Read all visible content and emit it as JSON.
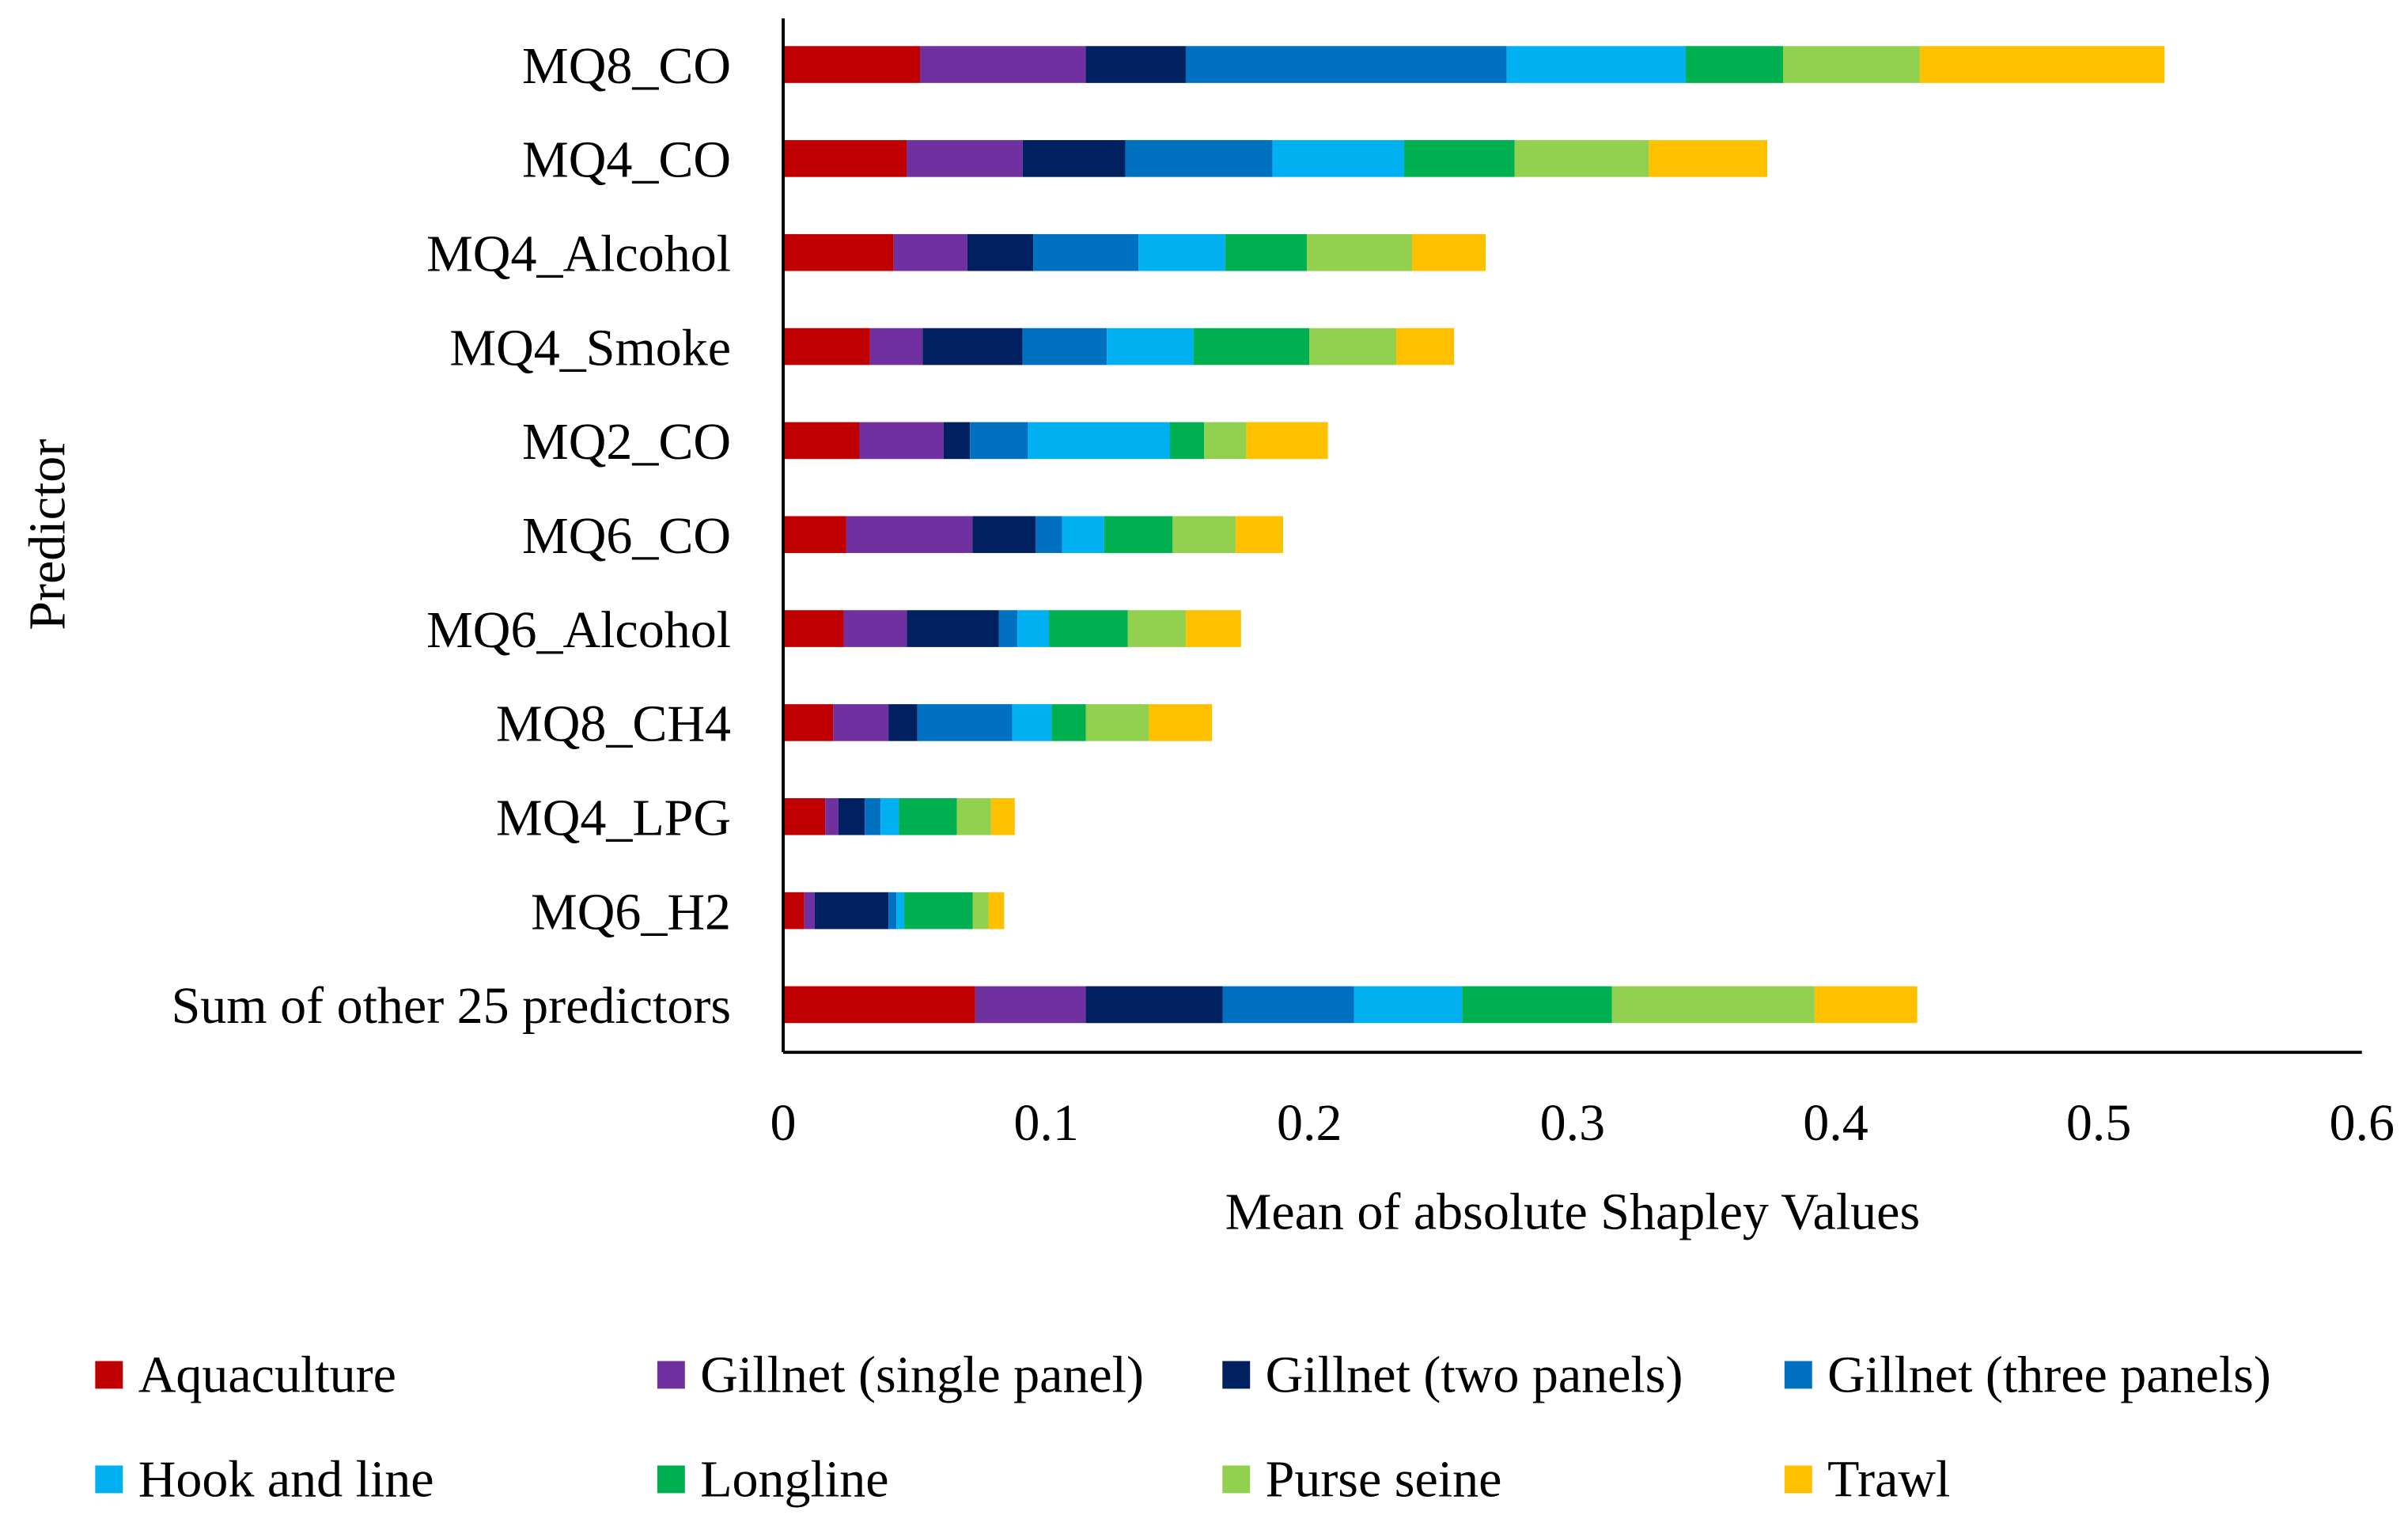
{
  "chart_data": {
    "type": "bar",
    "orientation": "horizontal",
    "stacked": true,
    "title": "",
    "xlabel": "Mean of absolute Shapley Values",
    "ylabel": "Predictor",
    "xlim": [
      0,
      0.6
    ],
    "xticks": [
      "0",
      "0.1",
      "0.2",
      "0.3",
      "0.4",
      "0.5",
      "0.6"
    ],
    "grid": false,
    "legend_position": "bottom",
    "categories": [
      "MQ8_CO",
      "MQ4_CO",
      "MQ4_Alcohol",
      "MQ4_Smoke",
      "MQ2_CO",
      "MQ6_CO",
      "MQ6_Alcohol",
      "MQ8_CH4",
      "MQ4_LPG",
      "MQ6_H2",
      "Sum of other 25 predictors"
    ],
    "series": [
      {
        "name": "Aquaculture",
        "color": "#C00000",
        "values": [
          0.052,
          0.047,
          0.042,
          0.033,
          0.029,
          0.024,
          0.023,
          0.019,
          0.016,
          0.008,
          0.073
        ]
      },
      {
        "name": "Gillnet (single panel)",
        "color": "#7030A0",
        "values": [
          0.063,
          0.044,
          0.028,
          0.02,
          0.032,
          0.048,
          0.024,
          0.021,
          0.005,
          0.004,
          0.042
        ]
      },
      {
        "name": "Gillnet (two panels)",
        "color": "#002060",
        "values": [
          0.038,
          0.039,
          0.025,
          0.038,
          0.01,
          0.024,
          0.035,
          0.011,
          0.01,
          0.028,
          0.052
        ]
      },
      {
        "name": "Gillnet (three panels)",
        "color": "#0070C0",
        "values": [
          0.122,
          0.056,
          0.04,
          0.032,
          0.022,
          0.01,
          0.007,
          0.036,
          0.006,
          0.003,
          0.05
        ]
      },
      {
        "name": "Hook and line",
        "color": "#00B0F0",
        "values": [
          0.068,
          0.05,
          0.033,
          0.033,
          0.054,
          0.016,
          0.012,
          0.015,
          0.007,
          0.003,
          0.041
        ]
      },
      {
        "name": "Longline",
        "color": "#00B050",
        "values": [
          0.037,
          0.042,
          0.031,
          0.044,
          0.013,
          0.026,
          0.03,
          0.013,
          0.022,
          0.026,
          0.057
        ]
      },
      {
        "name": "Purse seine",
        "color": "#92D050",
        "values": [
          0.052,
          0.051,
          0.04,
          0.033,
          0.016,
          0.024,
          0.022,
          0.024,
          0.013,
          0.006,
          0.077
        ]
      },
      {
        "name": "Trawl",
        "color": "#FFC000",
        "values": [
          0.093,
          0.045,
          0.028,
          0.022,
          0.031,
          0.018,
          0.021,
          0.024,
          0.009,
          0.006,
          0.039
        ]
      }
    ]
  }
}
